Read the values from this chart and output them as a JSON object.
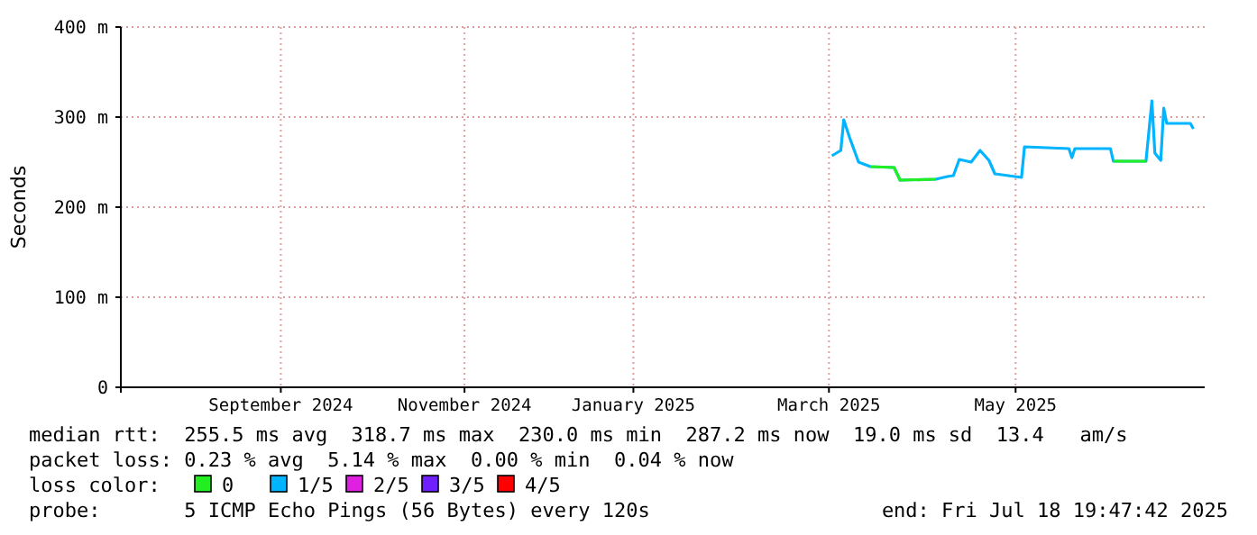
{
  "chart_data": {
    "type": "line",
    "ylabel": "Seconds",
    "legend_title": "loss color:",
    "legend": "bottom",
    "grid": true,
    "x": [
      "2025-03-15",
      "2025-03-18",
      "2025-03-19",
      "2025-03-21",
      "2025-03-24",
      "2025-03-28",
      "2025-04-05",
      "2025-04-07",
      "2025-04-19",
      "2025-04-23",
      "2025-04-25",
      "2025-04-27",
      "2025-05-01",
      "2025-05-04",
      "2025-05-07",
      "2025-05-09",
      "2025-05-18",
      "2025-05-19",
      "2025-06-03",
      "2025-06-04",
      "2025-06-05",
      "2025-06-17",
      "2025-06-18",
      "2025-06-29",
      "2025-07-01",
      "2025-07-02",
      "2025-07-04",
      "2025-07-05",
      "2025-07-06",
      "2025-07-14",
      "2025-07-15"
    ],
    "series": [
      {
        "name": "0",
        "color": "#22ee22",
        "values": [
          null,
          null,
          null,
          null,
          null,
          245,
          244,
          230,
          231,
          null,
          null,
          null,
          null,
          null,
          null,
          null,
          null,
          null,
          null,
          null,
          null,
          null,
          251,
          251,
          null,
          null,
          null,
          null,
          null,
          null,
          null
        ]
      },
      {
        "name": "1/5",
        "color": "#00b4ff",
        "values": [
          257,
          263,
          297,
          277,
          250,
          245,
          244,
          230,
          231,
          234,
          235,
          253,
          250,
          263,
          252,
          237,
          233,
          267,
          265,
          255,
          265,
          265,
          251,
          251,
          318,
          260,
          252,
          310,
          293,
          293,
          287
        ]
      },
      {
        "name": "2/5",
        "color": "#e020e0",
        "values": [
          null,
          null,
          null,
          null,
          null,
          null,
          null,
          null,
          null,
          null,
          null,
          null,
          null,
          null,
          null,
          null,
          null,
          null,
          null,
          null,
          null,
          null,
          null,
          null,
          null,
          null,
          null,
          null,
          null,
          null,
          null
        ]
      },
      {
        "name": "3/5",
        "color": "#7020ff",
        "values": [
          null,
          null,
          null,
          null,
          null,
          null,
          null,
          null,
          null,
          null,
          null,
          null,
          null,
          null,
          null,
          null,
          null,
          null,
          null,
          null,
          null,
          null,
          null,
          null,
          null,
          null,
          null,
          null,
          null,
          null,
          null
        ]
      },
      {
        "name": "4/5",
        "color": "#ff0000",
        "values": [
          null,
          null,
          null,
          null,
          null,
          null,
          null,
          null,
          null,
          null,
          null,
          null,
          null,
          null,
          null,
          null,
          null,
          null,
          null,
          null,
          null,
          null,
          null,
          null,
          null,
          null,
          null,
          null,
          null,
          null,
          null
        ]
      }
    ],
    "xlim": [
      "2024-07-18",
      "2025-07-18T19:47"
    ],
    "xticks": [
      {
        "value": "2024-09-10",
        "label": "September 2024"
      },
      {
        "value": "2024-11-11",
        "label": "November 2024"
      },
      {
        "value": "2025-01-07",
        "label": "January 2025"
      },
      {
        "value": "2025-03-14",
        "label": "March 2025"
      },
      {
        "value": "2025-05-16",
        "label": "May 2025"
      }
    ],
    "ylim": [
      0,
      400
    ],
    "yticks": [
      0,
      {
        "value": 100,
        "label": "100 m"
      },
      {
        "value": 200,
        "label": "200 m"
      },
      {
        "value": 300,
        "label": "300 m"
      },
      {
        "value": 400,
        "label": "400 m"
      }
    ],
    "annotations": [
      "median rtt:  255.5 ms avg  318.7 ms max  230.0 ms min  287.2 ms now  19.0 ms sd  13.4   am/s",
      "packet loss: 0.23 % avg  5.14 % max  0.00 % min  0.04 % now",
      "probe:       5 ICMP Echo Pings (56 Bytes) every 120s",
      "end: Fri Jul 18 19:47:42 2025"
    ]
  }
}
